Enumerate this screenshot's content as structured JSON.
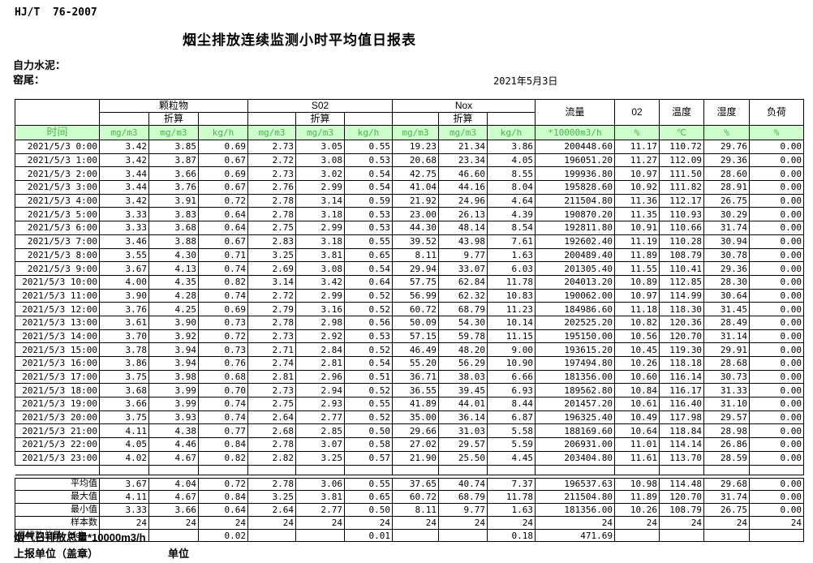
{
  "meta": {
    "standard": "HJ/T  76-2007",
    "title": "烟尘排放连续监测小时平均值日报表",
    "company": "自力水泥：",
    "location": "窑尾：",
    "date": "2021年5月3日"
  },
  "table": {
    "time_label": "时间",
    "conv_label": "折算",
    "groups": [
      {
        "label": "颗粒物"
      },
      {
        "label": "S02"
      },
      {
        "label": "Nox"
      }
    ],
    "flow_label": "流量",
    "o2_label": "02",
    "temp_label": "温度",
    "humidity_label": "湿度",
    "load_label": "负荷",
    "units": [
      "mg/m3",
      "mg/m3",
      "kg/h",
      "mg/m3",
      "mg/m3",
      "kg/h",
      "mg/m3",
      "mg/m3",
      "kg/h",
      "*10000m3/h",
      "%",
      "℃",
      "%",
      "%"
    ],
    "rows": [
      {
        "time": "2021/5/3 0:00",
        "values": [
          "3.42",
          "3.85",
          "0.69",
          "2.73",
          "3.05",
          "0.55",
          "19.23",
          "21.34",
          "3.86",
          "200448.60",
          "11.17",
          "110.72",
          "29.76",
          "0.00"
        ]
      },
      {
        "time": "2021/5/3 1:00",
        "values": [
          "3.42",
          "3.87",
          "0.67",
          "2.72",
          "3.08",
          "0.53",
          "20.68",
          "23.34",
          "4.05",
          "196051.20",
          "11.27",
          "112.09",
          "29.36",
          "0.00"
        ]
      },
      {
        "time": "2021/5/3 2:00",
        "values": [
          "3.44",
          "3.66",
          "0.69",
          "2.73",
          "3.02",
          "0.54",
          "42.75",
          "46.60",
          "8.55",
          "199936.80",
          "10.97",
          "111.50",
          "28.60",
          "0.00"
        ]
      },
      {
        "time": "2021/5/3 3:00",
        "values": [
          "3.44",
          "3.76",
          "0.67",
          "2.76",
          "2.99",
          "0.54",
          "41.04",
          "44.16",
          "8.04",
          "195828.60",
          "10.92",
          "111.82",
          "28.91",
          "0.00"
        ]
      },
      {
        "time": "2021/5/3 4:00",
        "values": [
          "3.42",
          "3.91",
          "0.72",
          "2.78",
          "3.14",
          "0.59",
          "21.92",
          "24.96",
          "4.64",
          "211504.80",
          "11.36",
          "112.17",
          "26.75",
          "0.00"
        ]
      },
      {
        "time": "2021/5/3 5:00",
        "values": [
          "3.33",
          "3.83",
          "0.64",
          "2.78",
          "3.18",
          "0.53",
          "23.00",
          "26.13",
          "4.39",
          "190870.20",
          "11.35",
          "110.93",
          "30.29",
          "0.00"
        ]
      },
      {
        "time": "2021/5/3 6:00",
        "values": [
          "3.33",
          "3.68",
          "0.64",
          "2.75",
          "2.99",
          "0.53",
          "44.30",
          "48.14",
          "8.54",
          "192811.80",
          "10.91",
          "110.66",
          "31.74",
          "0.00"
        ]
      },
      {
        "time": "2021/5/3 7:00",
        "values": [
          "3.46",
          "3.88",
          "0.67",
          "2.83",
          "3.18",
          "0.55",
          "39.52",
          "43.98",
          "7.61",
          "192602.40",
          "11.19",
          "110.28",
          "30.94",
          "0.00"
        ]
      },
      {
        "time": "2021/5/3 8:00",
        "values": [
          "3.55",
          "4.30",
          "0.71",
          "3.25",
          "3.81",
          "0.65",
          "8.11",
          "9.77",
          "1.63",
          "200489.40",
          "11.89",
          "108.79",
          "30.78",
          "0.00"
        ]
      },
      {
        "time": "2021/5/3 9:00",
        "values": [
          "3.67",
          "4.13",
          "0.74",
          "2.69",
          "3.08",
          "0.54",
          "29.94",
          "33.07",
          "6.03",
          "201305.40",
          "11.55",
          "110.41",
          "29.36",
          "0.00"
        ]
      },
      {
        "time": "2021/5/3 10:00",
        "values": [
          "4.00",
          "4.35",
          "0.82",
          "3.14",
          "3.42",
          "0.64",
          "57.75",
          "62.84",
          "11.78",
          "204013.20",
          "10.89",
          "112.85",
          "28.30",
          "0.00"
        ]
      },
      {
        "time": "2021/5/3 11:00",
        "values": [
          "3.90",
          "4.28",
          "0.74",
          "2.72",
          "2.99",
          "0.52",
          "56.99",
          "62.32",
          "10.83",
          "190062.00",
          "10.97",
          "114.99",
          "30.64",
          "0.00"
        ]
      },
      {
        "time": "2021/5/3 12:00",
        "values": [
          "3.76",
          "4.25",
          "0.69",
          "2.79",
          "3.16",
          "0.52",
          "60.72",
          "68.79",
          "11.23",
          "184986.60",
          "11.18",
          "118.30",
          "31.45",
          "0.00"
        ]
      },
      {
        "time": "2021/5/3 13:00",
        "values": [
          "3.61",
          "3.90",
          "0.73",
          "2.78",
          "2.98",
          "0.56",
          "50.09",
          "54.30",
          "10.14",
          "202525.20",
          "10.82",
          "120.36",
          "28.49",
          "0.00"
        ]
      },
      {
        "time": "2021/5/3 14:00",
        "values": [
          "3.70",
          "3.92",
          "0.72",
          "2.73",
          "2.92",
          "0.53",
          "57.15",
          "59.78",
          "11.15",
          "195150.00",
          "10.56",
          "120.70",
          "31.14",
          "0.00"
        ]
      },
      {
        "time": "2021/5/3 15:00",
        "values": [
          "3.78",
          "3.94",
          "0.73",
          "2.71",
          "2.84",
          "0.52",
          "46.49",
          "48.20",
          "9.00",
          "193615.20",
          "10.45",
          "119.30",
          "29.91",
          "0.00"
        ]
      },
      {
        "time": "2021/5/3 16:00",
        "values": [
          "3.86",
          "3.94",
          "0.76",
          "2.74",
          "2.81",
          "0.54",
          "55.20",
          "56.29",
          "10.90",
          "197494.80",
          "10.26",
          "118.18",
          "28.68",
          "0.00"
        ]
      },
      {
        "time": "2021/5/3 17:00",
        "values": [
          "3.75",
          "3.98",
          "0.68",
          "2.81",
          "2.96",
          "0.51",
          "36.71",
          "38.03",
          "6.66",
          "181356.00",
          "10.60",
          "116.14",
          "30.73",
          "0.00"
        ]
      },
      {
        "time": "2021/5/3 18:00",
        "values": [
          "3.68",
          "3.99",
          "0.70",
          "2.73",
          "2.94",
          "0.52",
          "36.55",
          "39.45",
          "6.93",
          "189562.80",
          "10.84",
          "116.17",
          "31.33",
          "0.00"
        ]
      },
      {
        "time": "2021/5/3 19:00",
        "values": [
          "3.66",
          "3.99",
          "0.74",
          "2.75",
          "2.93",
          "0.55",
          "41.89",
          "44.01",
          "8.44",
          "201457.20",
          "10.61",
          "116.40",
          "31.10",
          "0.00"
        ]
      },
      {
        "time": "2021/5/3 20:00",
        "values": [
          "3.75",
          "3.93",
          "0.74",
          "2.64",
          "2.77",
          "0.52",
          "35.00",
          "36.14",
          "6.87",
          "196325.40",
          "10.49",
          "117.98",
          "29.57",
          "0.00"
        ]
      },
      {
        "time": "2021/5/3 21:00",
        "values": [
          "4.11",
          "4.38",
          "0.77",
          "2.68",
          "2.85",
          "0.50",
          "29.66",
          "31.03",
          "5.58",
          "188169.60",
          "10.64",
          "118.84",
          "28.98",
          "0.00"
        ]
      },
      {
        "time": "2021/5/3 22:00",
        "values": [
          "4.05",
          "4.46",
          "0.84",
          "2.78",
          "3.07",
          "0.58",
          "27.02",
          "29.57",
          "5.59",
          "206931.00",
          "11.01",
          "114.14",
          "26.86",
          "0.00"
        ]
      },
      {
        "time": "2021/5/3 23:00",
        "values": [
          "4.02",
          "4.67",
          "0.82",
          "2.82",
          "3.25",
          "0.57",
          "21.90",
          "25.50",
          "4.45",
          "203404.80",
          "11.61",
          "113.70",
          "28.59",
          "0.00"
        ]
      }
    ],
    "summary": [
      {
        "label": "平均值",
        "values": [
          "3.67",
          "4.04",
          "0.72",
          "2.78",
          "3.06",
          "0.55",
          "37.65",
          "40.74",
          "7.37",
          "196537.63",
          "10.98",
          "114.48",
          "29.68",
          "0.00"
        ]
      },
      {
        "label": "最大值",
        "values": [
          "4.11",
          "4.67",
          "0.84",
          "3.25",
          "3.81",
          "0.65",
          "60.72",
          "68.79",
          "11.78",
          "211504.80",
          "11.89",
          "120.70",
          "31.74",
          "0.00"
        ]
      },
      {
        "label": "最小值",
        "values": [
          "3.33",
          "3.66",
          "0.64",
          "2.64",
          "2.77",
          "0.50",
          "8.11",
          "9.77",
          "1.63",
          "181356.00",
          "10.26",
          "108.79",
          "26.75",
          "0.00"
        ]
      },
      {
        "label": "样本数",
        "values": [
          "24",
          "24",
          "24",
          "24",
          "24",
          "24",
          "24",
          "24",
          "24",
          "24",
          "24",
          "24",
          "24",
          "24"
        ]
      },
      {
        "label": "日排放总量（t/d）",
        "values": [
          "",
          "",
          "0.02",
          "",
          "",
          "0.01",
          "",
          "",
          "0.18",
          "471.69",
          "",
          "",
          "",
          ""
        ]
      }
    ]
  },
  "footer": {
    "note": "烟气日排放总量*10000m3/h",
    "report_unit": "上报单位（盖章）",
    "unit": "单位"
  },
  "colors": {
    "header_row_bg": "#ccffcc",
    "header_row_text": "#4db34d",
    "border": "#000000"
  }
}
